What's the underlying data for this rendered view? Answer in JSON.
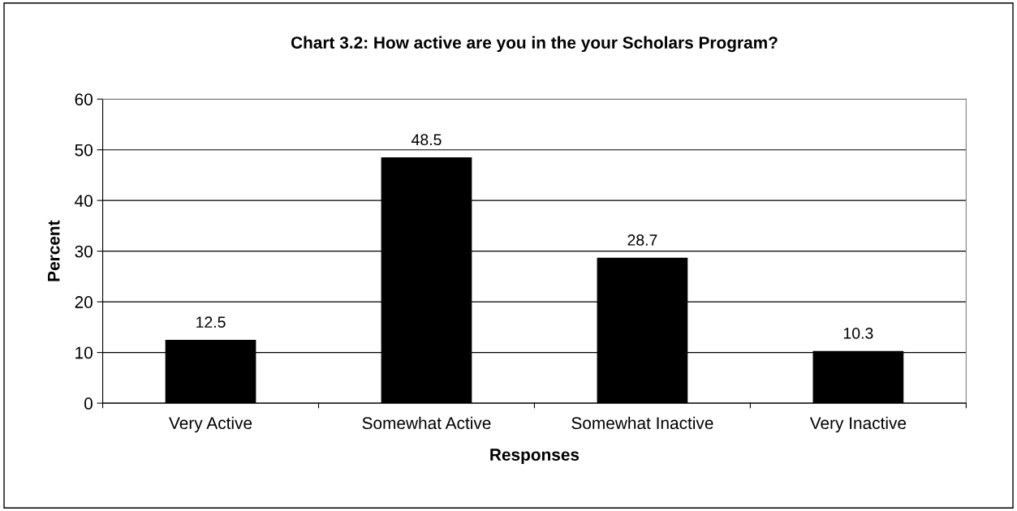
{
  "chart_data": {
    "type": "bar",
    "title": "Chart 3.2: How active are you in the your Scholars Program?",
    "xlabel": "Responses",
    "ylabel": "Percent",
    "categories": [
      "Very Active",
      "Somewhat Active",
      "Somewhat Inactive",
      "Very Inactive"
    ],
    "values": [
      12.5,
      48.5,
      28.7,
      10.3
    ],
    "color": "#000000",
    "ylim": [
      0,
      60
    ],
    "yticks": [
      0,
      10,
      20,
      30,
      40,
      50,
      60
    ],
    "grid": "y",
    "data_labels": true,
    "legend": false
  }
}
